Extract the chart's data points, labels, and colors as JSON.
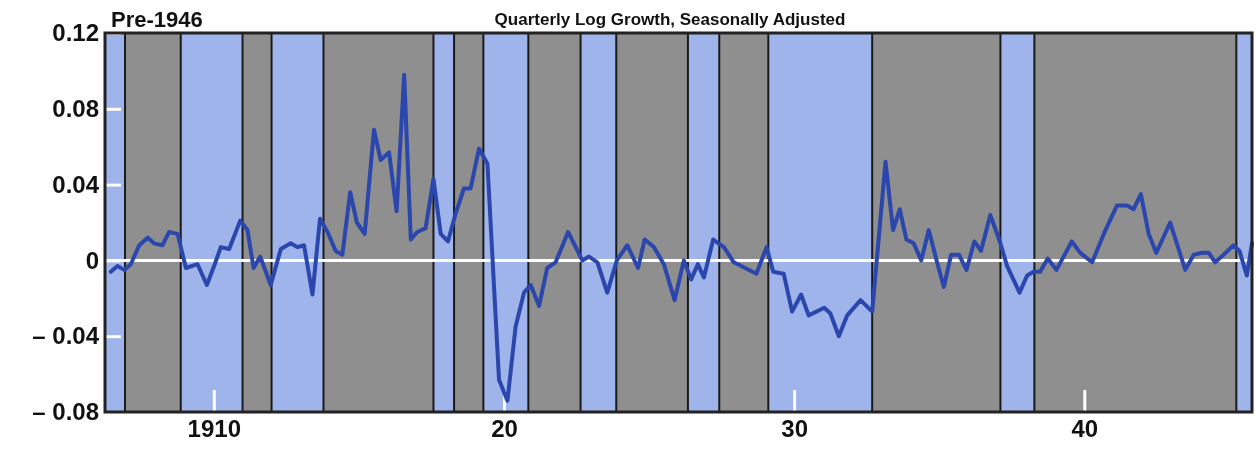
{
  "chart_data": {
    "type": "line",
    "title": "Pre-1946",
    "subtitle": "Quarterly Log Growth, Seasonally Adjusted",
    "xlim": [
      1906.25,
      1945.78
    ],
    "xticks": [
      {
        "value": 1910,
        "label": "1910"
      },
      {
        "value": 1920,
        "label": "20"
      },
      {
        "value": 1930,
        "label": "30"
      },
      {
        "value": 1940,
        "label": "40"
      }
    ],
    "ylim": [
      -0.08,
      0.12
    ],
    "yticks": [
      {
        "value": -0.08,
        "label": "– 0.08"
      },
      {
        "value": -0.04,
        "label": "– 0.04"
      },
      {
        "value": 0,
        "label": "0"
      },
      {
        "value": 0.04,
        "label": "0.04"
      },
      {
        "value": 0.08,
        "label": "0.08"
      },
      {
        "value": 0.12,
        "label": "0.12"
      }
    ],
    "grid": false,
    "marker": "none",
    "line_style": "solid",
    "ref_lines": [
      {
        "axis": "y",
        "value": 0,
        "label": null,
        "color": "#ffffff"
      }
    ],
    "bands": [
      {
        "axis": "x",
        "from": 1906.25,
        "to": 1906.94,
        "label": null,
        "color": "#9fb4ea"
      },
      {
        "axis": "x",
        "from": 1908.86,
        "to": 1910.99,
        "label": null,
        "color": "#9fb4ea"
      },
      {
        "axis": "x",
        "from": 1911.99,
        "to": 1913.78,
        "label": null,
        "color": "#9fb4ea"
      },
      {
        "axis": "x",
        "from": 1917.57,
        "to": 1918.28,
        "label": null,
        "color": "#9fb4ea"
      },
      {
        "axis": "x",
        "from": 1919.29,
        "to": 1920.84,
        "label": null,
        "color": "#9fb4ea"
      },
      {
        "axis": "x",
        "from": 1922.64,
        "to": 1923.87,
        "label": null,
        "color": "#9fb4ea"
      },
      {
        "axis": "x",
        "from": 1926.34,
        "to": 1927.42,
        "label": null,
        "color": "#9fb4ea"
      },
      {
        "axis": "x",
        "from": 1929.11,
        "to": 1932.69,
        "label": null,
        "color": "#9fb4ea"
      },
      {
        "axis": "x",
        "from": 1937.11,
        "to": 1938.28,
        "label": null,
        "color": "#9fb4ea"
      },
      {
        "axis": "x",
        "from": 1945.24,
        "to": 1945.78,
        "label": null,
        "color": "#9fb4ea"
      }
    ],
    "series": [
      {
        "color": "#2b46ad",
        "x": [
          1906.45,
          1906.68,
          1906.91,
          1907.14,
          1907.43,
          1907.72,
          1907.94,
          1908.23,
          1908.46,
          1908.75,
          1909.04,
          1909.44,
          1909.76,
          1910.01,
          1910.24,
          1910.53,
          1910.91,
          1911.16,
          1911.37,
          1911.6,
          1911.96,
          1912.31,
          1912.65,
          1912.88,
          1913.11,
          1913.4,
          1913.66,
          1913.92,
          1914.2,
          1914.43,
          1914.7,
          1914.93,
          1915.2,
          1915.52,
          1915.75,
          1916.04,
          1916.3,
          1916.56,
          1916.79,
          1917.01,
          1917.3,
          1917.57,
          1917.82,
          1918.07,
          1918.34,
          1918.62,
          1918.85,
          1919.14,
          1919.43,
          1919.83,
          1920.12,
          1920.4,
          1920.69,
          1920.92,
          1921.21,
          1921.49,
          1921.78,
          1922.21,
          1922.7,
          1922.93,
          1923.22,
          1923.56,
          1923.89,
          1924.25,
          1924.62,
          1924.85,
          1925.17,
          1925.51,
          1925.88,
          1926.2,
          1926.45,
          1926.68,
          1926.89,
          1927.21,
          1927.58,
          1927.92,
          1928.7,
          1929.05,
          1929.28,
          1929.64,
          1929.93,
          1930.24,
          1930.5,
          1931.04,
          1931.25,
          1931.54,
          1931.83,
          1932.29,
          1932.69,
          1933.15,
          1933.41,
          1933.64,
          1933.87,
          1934.12,
          1934.38,
          1934.64,
          1934.91,
          1935.16,
          1935.41,
          1935.68,
          1935.94,
          1936.21,
          1936.44,
          1936.76,
          1937.09,
          1937.34,
          1937.77,
          1938.03,
          1938.25,
          1938.48,
          1938.74,
          1939.04,
          1939.57,
          1939.86,
          1940.27,
          1940.73,
          1941.13,
          1941.47,
          1941.7,
          1941.95,
          1942.22,
          1942.48,
          1942.96,
          1943.48,
          1943.77,
          1944.06,
          1944.29,
          1944.51,
          1944.8,
          1945.14,
          1945.35,
          1945.6,
          1945.78
        ],
        "values": [
          -0.006,
          -0.003,
          -0.005,
          -0.002,
          0.008,
          0.012,
          0.009,
          0.008,
          0.015,
          0.014,
          -0.004,
          -0.002,
          -0.013,
          -0.003,
          0.007,
          0.006,
          0.021,
          0.016,
          -0.004,
          0.002,
          -0.013,
          0.006,
          0.009,
          0.007,
          0.008,
          -0.018,
          0.022,
          0.015,
          0.005,
          0.003,
          0.036,
          0.02,
          0.014,
          0.069,
          0.053,
          0.057,
          0.026,
          0.098,
          0.011,
          0.015,
          0.017,
          0.043,
          0.014,
          0.01,
          0.025,
          0.038,
          0.038,
          0.059,
          0.051,
          -0.063,
          -0.074,
          -0.035,
          -0.017,
          -0.013,
          -0.024,
          -0.004,
          -0.001,
          0.015,
          0,
          0.002,
          -0.001,
          -0.017,
          0,
          0.008,
          -0.004,
          0.011,
          0.007,
          -0.002,
          -0.021,
          0,
          -0.01,
          -0.002,
          -0.009,
          0.011,
          0.007,
          -0.001,
          -0.007,
          0.007,
          -0.006,
          -0.007,
          -0.027,
          -0.018,
          -0.029,
          -0.025,
          -0.028,
          -0.04,
          -0.029,
          -0.021,
          -0.027,
          0.052,
          0.016,
          0.027,
          0.011,
          0.009,
          0,
          0.016,
          0,
          -0.014,
          0.003,
          0.003,
          -0.005,
          0.01,
          0.005,
          0.024,
          0.01,
          -0.003,
          -0.017,
          -0.008,
          -0.006,
          -0.006,
          0.001,
          -0.005,
          0.01,
          0.004,
          -0.001,
          0.016,
          0.029,
          0.029,
          0.027,
          0.035,
          0.014,
          0.004,
          0.02,
          -0.005,
          0.003,
          0.004,
          0.004,
          -0.001,
          0.003,
          0.008,
          0.005,
          -0.008,
          0.009
        ]
      }
    ]
  }
}
